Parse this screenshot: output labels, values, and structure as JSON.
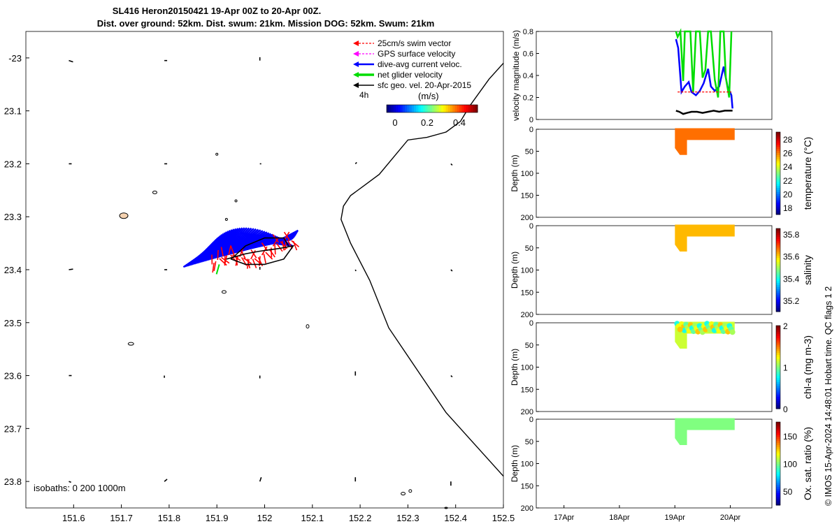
{
  "header": {
    "title_line1": "SL416 Heron20150421 19-Apr 00Z to 20-Apr 00Z.",
    "title_line2": "Dist. over ground: 52km. Dist. swum: 21km. Mission DOG: 52km. Swum: 21km"
  },
  "credit": "© IMOS 15-Apr-2024 14:48:01 Hobart time. QC flags 1  2",
  "colors": {
    "swim": "#ff0000",
    "gps": "#ff00ff",
    "current": "#0000ff",
    "net": "#00dd00",
    "geo": "#000000"
  },
  "chart_data": [
    {
      "type": "scatter",
      "name": "glider-track-map",
      "xlim": [
        151.5,
        152.5
      ],
      "ylim": [
        -23.85,
        -22.95
      ],
      "x_ticks": [
        151.6,
        151.7,
        151.8,
        151.9,
        152,
        152.1,
        152.2,
        152.3,
        152.4,
        152.5
      ],
      "x_tick_labels": [
        "151.6",
        "151.7",
        "151.8",
        "151.9",
        "152",
        "152.1",
        "152.2",
        "152.3",
        "152.4",
        "152.5"
      ],
      "y_ticks": [
        -23,
        -23.1,
        -23.2,
        -23.3,
        -23.4,
        -23.5,
        -23.6,
        -23.7,
        -23.8
      ],
      "y_tick_labels": [
        "-23",
        "23.1",
        "23.2",
        "23.3",
        "23.4",
        "23.5",
        "23.6",
        "23.7",
        "23.8"
      ],
      "legend": {
        "items": [
          "25cm/s swim vector",
          "GPS surface velocity",
          "dive-avg current veloc.",
          "net glider velocity",
          "sfc geo. vel. 20-Apr-2015"
        ],
        "interval_label": "4h",
        "colorbar_title": "(m/s)",
        "colorbar_ticks": [
          "0",
          "0.2",
          "0.4"
        ]
      },
      "isobaths_label": "isobaths: 0   200  1000m",
      "coastline_200m": [
        [
          152.5,
          -23.01
        ],
        [
          152.47,
          -23.04
        ],
        [
          152.43,
          -23.09
        ],
        [
          152.41,
          -23.12
        ],
        [
          152.38,
          -23.14
        ],
        [
          152.34,
          -23.15
        ],
        [
          152.3,
          -23.155
        ],
        [
          152.24,
          -23.22
        ],
        [
          152.21,
          -23.24
        ],
        [
          152.18,
          -23.26
        ],
        [
          152.165,
          -23.28
        ],
        [
          152.16,
          -23.305
        ],
        [
          152.18,
          -23.35
        ],
        [
          152.22,
          -23.42
        ],
        [
          152.26,
          -23.51
        ],
        [
          152.32,
          -23.59
        ],
        [
          152.38,
          -23.67
        ],
        [
          152.41,
          -23.7
        ],
        [
          152.44,
          -23.73
        ],
        [
          152.5,
          -23.79
        ]
      ],
      "glider_track": [
        [
          151.92,
          -23.38
        ],
        [
          151.96,
          -23.37
        ],
        [
          151.99,
          -23.365
        ],
        [
          152.03,
          -23.36
        ],
        [
          152.06,
          -23.355
        ],
        [
          152.04,
          -23.38
        ],
        [
          152.0,
          -23.39
        ],
        [
          151.96,
          -23.39
        ],
        [
          151.93,
          -23.38
        ],
        [
          151.96,
          -23.355
        ],
        [
          152.0,
          -23.34
        ],
        [
          152.04,
          -23.34
        ],
        [
          152.05,
          -23.355
        ]
      ],
      "geostrophic_vectors": [
        [
          151.59,
          -23.005,
          0.15,
          0.05
        ],
        [
          151.79,
          -23.005,
          0.1,
          0.0
        ],
        [
          151.99,
          -23.005,
          0.0,
          -0.12
        ],
        [
          151.59,
          -23.2,
          0.1,
          0.0
        ],
        [
          151.79,
          -23.2,
          0.1,
          0.0
        ],
        [
          151.99,
          -23.2,
          0.05,
          0.0
        ],
        [
          152.19,
          -23.2,
          0.05,
          -0.05
        ],
        [
          152.39,
          -23.2,
          0.05,
          0.05
        ],
        [
          151.59,
          -23.4,
          0.15,
          -0.02
        ],
        [
          151.79,
          -23.4,
          0.1,
          0.0
        ],
        [
          151.99,
          -23.4,
          0.0,
          -0.1
        ],
        [
          152.19,
          -23.4,
          0.02,
          0.05
        ],
        [
          152.39,
          -23.4,
          0.05,
          0.05
        ],
        [
          151.59,
          -23.6,
          0.1,
          0.0
        ],
        [
          151.79,
          -23.6,
          0.0,
          0.08
        ],
        [
          151.99,
          -23.6,
          0.0,
          0.1
        ],
        [
          152.19,
          -23.6,
          0.0,
          -0.15
        ],
        [
          152.39,
          -23.6,
          0.05,
          0.05
        ],
        [
          151.59,
          -23.8,
          0.08,
          0.03
        ],
        [
          151.79,
          -23.8,
          0.1,
          -0.08
        ],
        [
          151.99,
          -23.8,
          0.05,
          -0.15
        ],
        [
          152.19,
          -23.8,
          0.0,
          -0.15
        ],
        [
          152.39,
          -23.8,
          0.0,
          0.15
        ]
      ]
    },
    {
      "type": "line",
      "name": "velocity-magnitude",
      "ylabel": "velocity magnitude (m/s)",
      "ylim": [
        0,
        0.8
      ],
      "y_ticks": [
        0,
        0.2,
        0.4,
        0.6,
        0.8
      ],
      "y_tick_labels": [
        "0",
        "0.2",
        "0.4",
        "0.6",
        "0.8"
      ],
      "xlim": [
        16.5,
        20.75
      ],
      "series": [
        {
          "name": "dive-avg current veloc.",
          "x": [
            19.02,
            19.06,
            19.12,
            19.18,
            19.25,
            19.3,
            19.38,
            19.45,
            19.52,
            19.6,
            19.65,
            19.72,
            19.8,
            19.88,
            19.95,
            20.02,
            20.04
          ],
          "y": [
            0.73,
            0.65,
            0.25,
            0.3,
            0.34,
            0.25,
            0.22,
            0.26,
            0.33,
            0.46,
            0.3,
            0.26,
            0.3,
            0.48,
            0.3,
            0.22,
            0.1
          ]
        },
        {
          "name": "net glider velocity",
          "x": [
            19.02,
            19.05,
            19.1,
            19.15,
            19.18,
            19.22,
            19.28,
            19.33,
            19.38,
            19.45,
            19.5,
            19.55,
            19.6,
            19.65,
            19.72,
            19.78,
            19.82,
            19.88,
            19.92,
            19.98,
            20.02
          ],
          "y": [
            0.8,
            0.75,
            0.8,
            0.35,
            0.8,
            0.8,
            0.8,
            0.25,
            0.8,
            0.8,
            0.38,
            0.45,
            0.8,
            0.8,
            0.36,
            0.2,
            0.8,
            0.8,
            0.38,
            0.2,
            0.8
          ]
        },
        {
          "name": "25cm/s swim vector",
          "x": [
            19.05,
            19.3,
            19.6,
            19.9,
            20.02
          ],
          "y": [
            0.25,
            0.25,
            0.25,
            0.25,
            0.25
          ]
        },
        {
          "name": "sfc geo. vel.",
          "x": [
            19.02,
            19.08,
            19.15,
            19.22,
            19.3,
            19.4,
            19.5,
            19.6,
            19.7,
            19.8,
            19.9,
            20.0,
            20.04
          ],
          "y": [
            0.08,
            0.07,
            0.05,
            0.06,
            0.07,
            0.07,
            0.06,
            0.07,
            0.08,
            0.07,
            0.08,
            0.08,
            0.08
          ]
        }
      ]
    },
    {
      "type": "heatmap",
      "name": "temperature-section",
      "ylabel": "Depth (m)",
      "y_ticks": [
        0,
        50,
        100,
        150,
        200
      ],
      "y_tick_labels": [
        "0",
        "50",
        "100",
        "150",
        "200"
      ],
      "colorbar_label": "temperature (°C)",
      "colorbar_range": [
        17,
        29
      ],
      "colorbar_ticks": [
        18,
        20,
        22,
        24,
        26,
        28
      ],
      "colorbar_tick_labels": [
        "18",
        "20",
        "22",
        "24",
        "26",
        "28"
      ],
      "value": 26.2
    },
    {
      "type": "heatmap",
      "name": "salinity-section",
      "ylabel": "Depth (m)",
      "y_ticks": [
        0,
        50,
        100,
        150,
        200
      ],
      "y_tick_labels": [
        "0",
        "50",
        "100",
        "150",
        "200"
      ],
      "colorbar_label": "salinity",
      "colorbar_range": [
        35.1,
        35.85
      ],
      "colorbar_ticks": [
        35.2,
        35.4,
        35.6,
        35.8
      ],
      "colorbar_tick_labels": [
        "35.2",
        "35.4",
        "35.6",
        "35.8"
      ],
      "value": 35.62
    },
    {
      "type": "heatmap",
      "name": "chla-section",
      "ylabel": "Depth (m)",
      "y_ticks": [
        0,
        50,
        100,
        150,
        200
      ],
      "y_tick_labels": [
        "0",
        "50",
        "100",
        "150",
        "200"
      ],
      "colorbar_label": "chl-a (mg m-3)",
      "colorbar_range": [
        0,
        2
      ],
      "colorbar_ticks": [
        0,
        1,
        2
      ],
      "colorbar_tick_labels": [
        "0",
        "1",
        "2"
      ],
      "value": 1.15
    },
    {
      "type": "heatmap",
      "name": "oxygen-section",
      "ylabel": "Depth (m)",
      "y_ticks": [
        0,
        50,
        100,
        150,
        200
      ],
      "y_tick_labels": [
        "0",
        "50",
        "100",
        "150",
        "200"
      ],
      "colorbar_label": "Ox. sat. ratio (%)",
      "colorbar_range": [
        25,
        175
      ],
      "colorbar_ticks": [
        50,
        100,
        150
      ],
      "colorbar_tick_labels": [
        "50",
        "100",
        "150"
      ],
      "value": 100,
      "x_tick_labels": [
        "17Apr",
        "18Apr",
        "19Apr",
        "20Apr"
      ],
      "x_ticks": [
        17,
        18,
        19,
        20
      ]
    }
  ]
}
